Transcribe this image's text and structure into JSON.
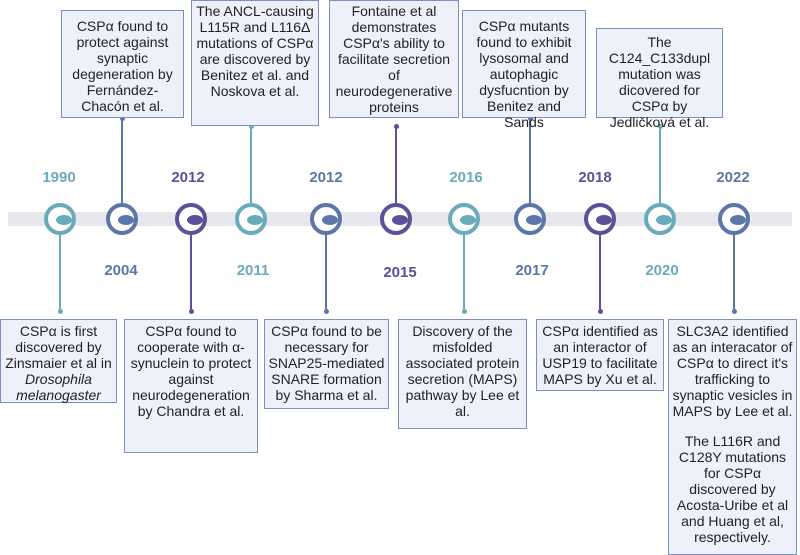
{
  "colors": {
    "teal": "#6aabbb",
    "slate": "#5b76a8",
    "purple": "#5d4f98",
    "box_border": "#7b8fc4",
    "box_fill": "#eef1f9"
  },
  "years": [
    "1990",
    "2004",
    "2012",
    "2011",
    "2012",
    "2015",
    "2016",
    "2017",
    "2018",
    "2020",
    "2022"
  ],
  "events_top": [
    {
      "text": "CSPα found to protect against synaptic degeneration by Fernández-Chacón et al."
    },
    {
      "text": "The ANCL-causing L115R and L116Δ mutations of CSPα are discovered by Benitez et al. and Noskova et al."
    },
    {
      "text": "Fontaine et al demonstrates CSPα's ability to facilitate secretion of neurodegenerative proteins"
    },
    {
      "text": "CSPα mutants found to exhibit lysosomal and autophagic dysfucntion by Benitez and Sands"
    },
    {
      "text": "The C124_C133dupl mutation was dicovered for CSPα by Jedličková et al."
    }
  ],
  "events_bottom": [
    {
      "text_pre": "CSPα is first discovered by Zinsmaier et al in ",
      "text_em": "Drosophila melanogaster"
    },
    {
      "text": "CSPα found to cooperate with α-synuclein to protect against neurodegeneration by Chandra et al."
    },
    {
      "text": "CSPα found to be necessary for SNAP25-mediated SNARE formation by Sharma et al."
    },
    {
      "text": "Discovery of the misfolded associated protein secretion (MAPS) pathway by Lee et al."
    },
    {
      "text": "CSPα identified as an interactor of USP19 to facilitate MAPS by Xu et al."
    },
    {
      "text": "SLC3A2 identified as an interacator of CSPα to direct it's trafficking to synaptic vesicles in MAPS by Lee et al.",
      "text2": "The L116R and C128Y mutations for CSPα discovered by Acosta-Uribe et al and Huang et al, respectively."
    }
  ]
}
